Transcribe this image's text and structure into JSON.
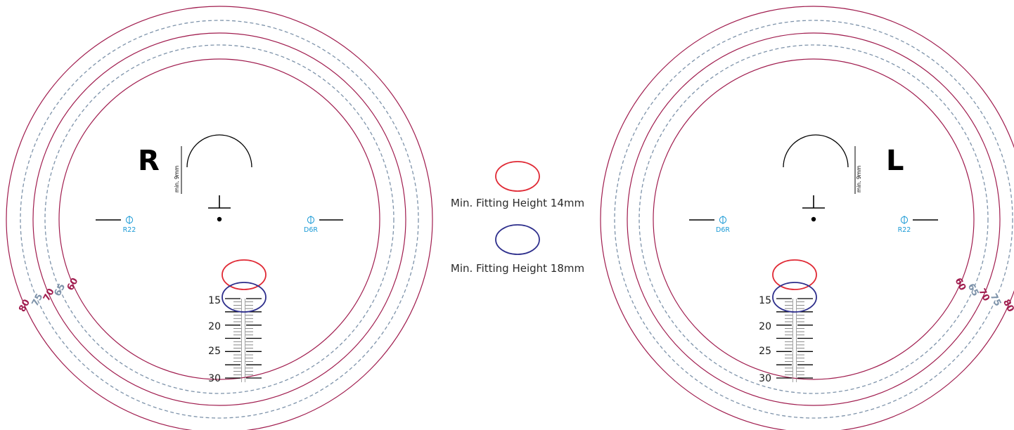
{
  "colors": {
    "solid_ring": "#a01c4e",
    "dashed_ring": "#7e93aa",
    "oval_14mm": "#e02a35",
    "oval_18mm": "#2e2f8c",
    "prism_marker": "#1a9ad6",
    "ink": "#000000"
  },
  "lens_right": {
    "eye_letter": "R",
    "min_label": "min. 9mm",
    "prism_left_code": "R22",
    "prism_right_code": "D6R",
    "diameters": [
      {
        "value": "60",
        "style": "solid"
      },
      {
        "value": "65",
        "style": "dashed"
      },
      {
        "value": "70",
        "style": "solid"
      },
      {
        "value": "75",
        "style": "dashed"
      },
      {
        "value": "80",
        "style": "solid"
      }
    ],
    "scale": [
      "15",
      "20",
      "25",
      "30"
    ]
  },
  "lens_left": {
    "eye_letter": "L",
    "min_label": "min. 9mm",
    "prism_left_code": "D6R",
    "prism_right_code": "R22",
    "diameters": [
      {
        "value": "60",
        "style": "solid"
      },
      {
        "value": "65",
        "style": "dashed"
      },
      {
        "value": "70",
        "style": "solid"
      },
      {
        "value": "75",
        "style": "dashed"
      },
      {
        "value": "80",
        "style": "solid"
      }
    ],
    "scale": [
      "15",
      "20",
      "25",
      "30"
    ]
  },
  "legend": [
    {
      "label": "Min. Fitting Height 14mm",
      "color": "#e02a35"
    },
    {
      "label": "Min. Fitting Height 18mm",
      "color": "#2e2f8c"
    }
  ],
  "icons": {
    "fitting_cross": "fitting-cross-icon",
    "prism_reference": "prism-reference-icon",
    "distance_arc": "distance-zone-arc-icon"
  }
}
